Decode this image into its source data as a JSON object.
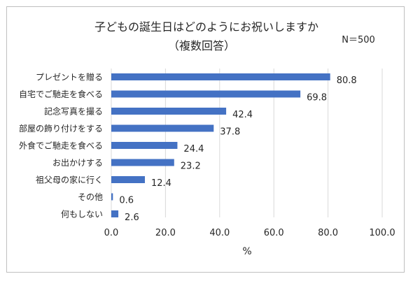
{
  "chart_data": {
    "type": "bar",
    "orientation": "horizontal",
    "title": "子どもの誕生日はどのようにお祝いしますか",
    "subtitle": "（複数回答）",
    "annotation": "N＝500",
    "categories": [
      "プレゼントを贈る",
      "自宅でご馳走を食べる",
      "記念写真を撮る",
      "部屋の飾り付けをする",
      "外食でご馳走を食べる",
      "お出かけする",
      "祖父母の家に行く",
      "その他",
      "何もしない"
    ],
    "values": [
      80.8,
      69.8,
      42.4,
      37.8,
      24.4,
      23.2,
      12.4,
      0.6,
      2.6
    ],
    "value_labels": [
      "80.8",
      "69.8",
      "42.4",
      "37.8",
      "24.4",
      "23.2",
      "12.4",
      "0.6",
      "2.6"
    ],
    "xlabel": "%",
    "ylabel": "",
    "xlim": [
      0,
      100
    ],
    "xticks": [
      "0.0",
      "20.0",
      "40.0",
      "60.0",
      "80.0",
      "100.0"
    ],
    "xtick_values": [
      0,
      20,
      40,
      60,
      80,
      100
    ],
    "grid": true,
    "legend": "none",
    "bar_color": "#4472c4",
    "grid_color": "#d9d9d9"
  }
}
